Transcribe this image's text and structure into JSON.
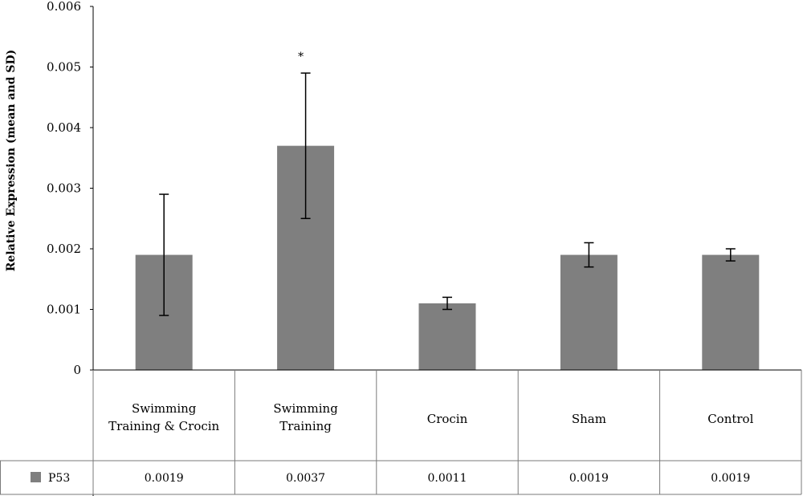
{
  "chart_data": {
    "type": "bar",
    "title": "",
    "xlabel": "",
    "ylabel": "Relative Expression (mean and SD)",
    "ylim": [
      0,
      0.006
    ],
    "yticks": [
      "0",
      "0.001",
      "0.002",
      "0.003",
      "0.004",
      "0.005",
      "0.006"
    ],
    "categories": [
      [
        "Swimming",
        "Training & Crocin"
      ],
      [
        "Swimming",
        "Training"
      ],
      [
        "Crocin"
      ],
      [
        "Sham"
      ],
      [
        "Control"
      ]
    ],
    "series": [
      {
        "name": "P53",
        "values": [
          0.0019,
          0.0037,
          0.0011,
          0.0019,
          0.0019
        ],
        "value_labels": [
          "0.0019",
          "0.0037",
          "0.0011",
          "0.0019",
          "0.0019"
        ],
        "sd": [
          0.001,
          0.0012,
          0.0001,
          0.0002,
          0.0001
        ],
        "color": "#7f7f7f"
      }
    ],
    "annotations": [
      {
        "category_index": 1,
        "text": "*"
      }
    ],
    "grid": false,
    "legend": "data-table"
  }
}
